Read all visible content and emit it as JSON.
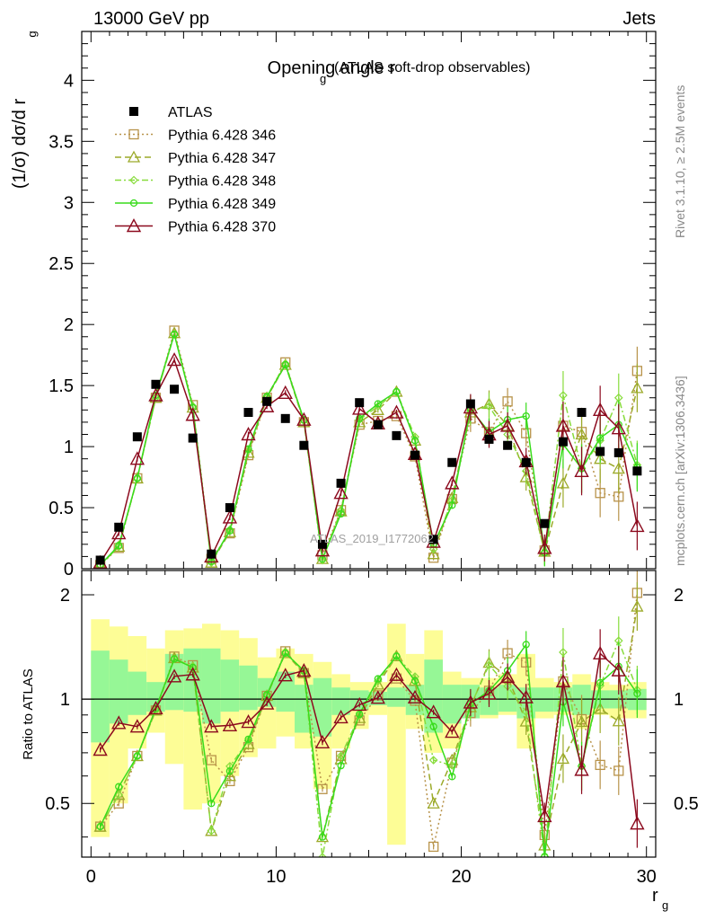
{
  "header": {
    "left": "13000 GeV pp",
    "right": "Jets"
  },
  "title_main": "Opening angle r",
  "title_sub": "g",
  "title_paren": "(ATLAS soft-drop observables)",
  "ylabel_main": "(1/σ) dσ/d r",
  "ylabel_sub": "g",
  "ratio_ylabel": "Ratio to ATLAS",
  "xlabel_main": "r",
  "xlabel_sub": "g",
  "watermark": "ATLAS_2019_I1772062",
  "side_text_top": "Rivet 3.1.10, ≥ 2.5M events",
  "side_text_bottom": "mcplots.cern.ch [arXiv:1306.3436]",
  "colors": {
    "atlas": "#000000",
    "p346": "#b8934a",
    "p347": "#9caa2a",
    "p348": "#88dc3c",
    "p349": "#38dc1c",
    "p370": "#8c0a1e",
    "band_outer": "#fdfd96",
    "band_inner": "#96f796"
  },
  "chart_data": {
    "type": "scatter",
    "x": [
      0.5,
      1.5,
      2.5,
      3.5,
      4.5,
      5.5,
      6.5,
      7.5,
      8.5,
      9.5,
      10.5,
      11.5,
      12.5,
      13.5,
      14.5,
      15.5,
      16.5,
      17.5,
      18.5,
      19.5,
      20.5,
      21.5,
      22.5,
      23.5,
      24.5,
      25.5,
      26.5,
      27.5,
      28.5,
      29.5
    ],
    "xlim": [
      -0.5,
      30.5
    ],
    "main_ylim": [
      0,
      4.4
    ],
    "main_yticks": [
      "0",
      "0.5",
      "1",
      "1.5",
      "2",
      "2.5",
      "3",
      "3.5",
      "4"
    ],
    "ratio_ylim": [
      0.35,
      2.35
    ],
    "ratio_yticks": [
      "0.5",
      "1",
      "2"
    ],
    "xticks": [
      "0",
      "10",
      "20",
      "30"
    ],
    "legend": {
      "placement": "top-left",
      "entries": [
        "ATLAS",
        "Pythia 6.428 346",
        "Pythia 6.428 347",
        "Pythia 6.428 348",
        "Pythia 6.428 349",
        "Pythia 6.428 370"
      ]
    },
    "data": {
      "name": "ATLAS",
      "values": [
        0.07,
        0.34,
        1.08,
        1.51,
        1.47,
        1.07,
        0.12,
        0.5,
        1.28,
        1.37,
        1.23,
        1.01,
        0.2,
        0.7,
        1.36,
        1.18,
        1.09,
        0.93,
        0.24,
        0.87,
        1.35,
        1.06,
        1.01,
        0.87,
        0.37,
        1.04,
        1.28,
        0.96,
        0.95,
        0.8
      ]
    },
    "series": [
      {
        "name": "Pythia 6.428 346",
        "values": [
          0.03,
          0.17,
          0.74,
          1.4,
          1.95,
          1.34,
          0.08,
          0.29,
          0.93,
          1.4,
          1.69,
          1.2,
          0.11,
          0.48,
          1.18,
          1.21,
          1.25,
          0.92,
          0.09,
          0.57,
          1.23,
          1.12,
          1.37,
          1.11,
          0.15,
          1.17,
          1.12,
          0.62,
          0.59,
          1.62
        ]
      },
      {
        "name": "Pythia 6.428 347",
        "values": [
          0.03,
          0.18,
          0.74,
          1.4,
          1.93,
          1.32,
          0.05,
          0.3,
          0.95,
          1.4,
          1.67,
          1.2,
          0.08,
          0.47,
          1.2,
          1.3,
          1.45,
          1.05,
          0.12,
          0.58,
          1.28,
          1.35,
          1.17,
          0.75,
          0.14,
          0.7,
          1.1,
          0.9,
          0.82,
          1.48
        ]
      },
      {
        "name": "Pythia 6.428 348",
        "values": [
          0.03,
          0.18,
          0.74,
          1.4,
          1.92,
          1.33,
          0.05,
          0.32,
          0.97,
          1.41,
          1.68,
          1.21,
          0.07,
          0.48,
          1.22,
          1.33,
          1.45,
          1.08,
          0.16,
          0.56,
          1.29,
          1.33,
          1.1,
          0.8,
          0.13,
          1.42,
          0.82,
          1.05,
          1.4,
          0.85
        ]
      },
      {
        "name": "Pythia 6.428 349",
        "values": [
          0.03,
          0.19,
          0.74,
          1.42,
          1.92,
          1.32,
          0.06,
          0.31,
          0.98,
          1.41,
          1.67,
          1.22,
          0.08,
          0.45,
          1.23,
          1.35,
          1.45,
          1.05,
          0.2,
          0.52,
          1.31,
          1.12,
          1.22,
          1.25,
          0.13,
          1.02,
          0.82,
          1.07,
          1.18,
          0.83
        ]
      },
      {
        "name": "Pythia 6.428 370",
        "values": [
          0.05,
          0.29,
          0.9,
          1.42,
          1.71,
          1.26,
          0.1,
          0.42,
          1.1,
          1.33,
          1.44,
          1.22,
          0.15,
          0.62,
          1.31,
          1.19,
          1.28,
          0.94,
          0.22,
          0.7,
          1.32,
          1.1,
          1.17,
          0.88,
          0.17,
          1.17,
          0.8,
          1.3,
          1.15,
          0.35
        ]
      }
    ],
    "ratio_bands": {
      "inner_lo": [
        0.75,
        0.85,
        0.9,
        0.92,
        0.93,
        0.92,
        0.85,
        0.92,
        0.93,
        0.95,
        0.92,
        0.8,
        0.78,
        0.9,
        0.93,
        0.96,
        0.95,
        0.9,
        0.8,
        0.85,
        0.88,
        0.9,
        0.92,
        0.88,
        0.92,
        0.92,
        0.9,
        0.94,
        0.94,
        0.93
      ],
      "inner_hi": [
        1.38,
        1.3,
        1.2,
        1.12,
        1.35,
        1.4,
        1.4,
        1.3,
        1.25,
        1.15,
        1.2,
        1.1,
        1.15,
        1.08,
        1.06,
        1.05,
        1.08,
        1.1,
        1.3,
        1.1,
        1.1,
        1.08,
        1.1,
        1.08,
        1.08,
        1.08,
        1.1,
        1.06,
        1.06,
        1.07
      ],
      "outer_lo": [
        0.4,
        0.5,
        0.72,
        0.8,
        0.65,
        0.48,
        0.5,
        0.6,
        0.68,
        0.72,
        0.78,
        0.72,
        0.55,
        0.72,
        0.82,
        0.9,
        0.38,
        0.82,
        0.7,
        0.72,
        0.88,
        0.88,
        0.9,
        0.72,
        0.88,
        0.9,
        0.82,
        0.9,
        0.88,
        0.88
      ],
      "outer_hi": [
        1.7,
        1.62,
        1.52,
        1.4,
        1.58,
        1.6,
        1.65,
        1.58,
        1.5,
        1.32,
        1.4,
        1.35,
        1.28,
        1.18,
        1.12,
        1.12,
        1.65,
        1.35,
        1.58,
        1.2,
        1.15,
        1.15,
        1.18,
        1.35,
        1.15,
        1.12,
        1.18,
        1.12,
        1.1,
        1.12
      ]
    }
  }
}
